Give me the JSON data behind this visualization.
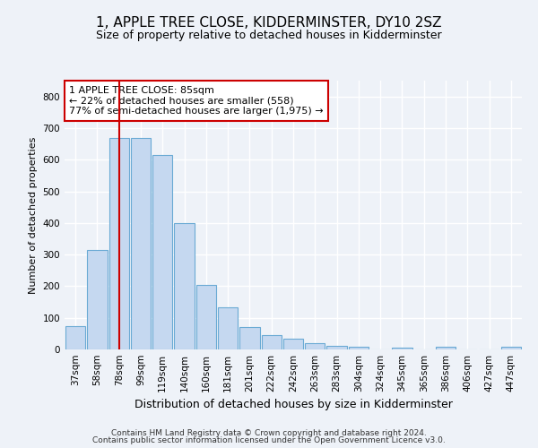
{
  "title": "1, APPLE TREE CLOSE, KIDDERMINSTER, DY10 2SZ",
  "subtitle": "Size of property relative to detached houses in Kidderminster",
  "xlabel": "Distribution of detached houses by size in Kidderminster",
  "ylabel": "Number of detached properties",
  "categories": [
    "37sqm",
    "58sqm",
    "78sqm",
    "99sqm",
    "119sqm",
    "140sqm",
    "160sqm",
    "181sqm",
    "201sqm",
    "222sqm",
    "242sqm",
    "263sqm",
    "283sqm",
    "304sqm",
    "324sqm",
    "345sqm",
    "365sqm",
    "386sqm",
    "406sqm",
    "427sqm",
    "447sqm"
  ],
  "values": [
    75,
    315,
    668,
    668,
    615,
    400,
    205,
    132,
    70,
    45,
    35,
    20,
    12,
    8,
    0,
    5,
    0,
    8,
    0,
    0,
    8
  ],
  "bar_color": "#c5d8f0",
  "bar_edge_color": "#6aaad4",
  "vline_x": 2,
  "vline_color": "#cc0000",
  "annotation_line1": "1 APPLE TREE CLOSE: 85sqm",
  "annotation_line2": "← 22% of detached houses are smaller (558)",
  "annotation_line3": "77% of semi-detached houses are larger (1,975) →",
  "annotation_box_color": "#ffffff",
  "annotation_box_edge_color": "#cc0000",
  "ylim": [
    0,
    850
  ],
  "yticks": [
    0,
    100,
    200,
    300,
    400,
    500,
    600,
    700,
    800
  ],
  "footer_line1": "Contains HM Land Registry data © Crown copyright and database right 2024.",
  "footer_line2": "Contains public sector information licensed under the Open Government Licence v3.0.",
  "background_color": "#eef2f8",
  "grid_color": "#ffffff",
  "title_fontsize": 11,
  "subtitle_fontsize": 9,
  "tick_fontsize": 7.5,
  "ylabel_fontsize": 8,
  "xlabel_fontsize": 9
}
